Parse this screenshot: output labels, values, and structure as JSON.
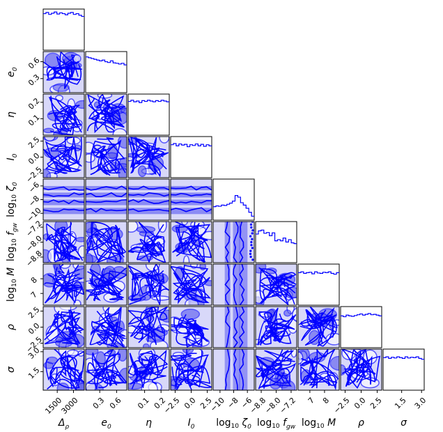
{
  "chart_data": {
    "type": "corner",
    "description_free": true,
    "color": "#0000ff",
    "params": [
      {
        "label": "Δ",
        "sub": "ρ",
        "prefix": "",
        "ticks": [
          "1500",
          "3000"
        ],
        "range": [
          200,
          4000
        ]
      },
      {
        "label": "e",
        "sub": "0",
        "prefix": "",
        "ticks": [
          "0.3",
          "0.6"
        ],
        "range": [
          0.05,
          0.78
        ]
      },
      {
        "label": "η",
        "sub": "",
        "prefix": "",
        "ticks": [
          "0.1",
          "0.2"
        ],
        "range": [
          0.0,
          0.25
        ]
      },
      {
        "label": "I",
        "sub": "0",
        "prefix": "",
        "ticks": [
          "−2.5",
          "0.0",
          "2.5"
        ],
        "range": [
          -3.2,
          3.2
        ]
      },
      {
        "label": "ζ",
        "sub": "0",
        "prefix": "log10",
        "ticks": [
          "−10",
          "−8",
          "−6"
        ],
        "range": [
          -11,
          -5
        ]
      },
      {
        "label": "f",
        "sub": "gw",
        "prefix": "log10",
        "ticks": [
          "−8.8",
          "−8.0",
          "−7.2"
        ],
        "range": [
          -9.1,
          -6.9
        ]
      },
      {
        "label": "M",
        "sub": "",
        "prefix": "log10",
        "ticks": [
          "7",
          "8"
        ],
        "range": [
          6.2,
          9.0
        ]
      },
      {
        "label": "ρ",
        "sub": "",
        "prefix": "",
        "ticks": [
          "−2.5",
          "0.0",
          "2.5"
        ],
        "range": [
          -3.2,
          3.2
        ]
      },
      {
        "label": "σ",
        "sub": "",
        "prefix": "",
        "ticks": [
          "1.5",
          "3.0"
        ],
        "range": [
          0.1,
          3.2
        ]
      }
    ],
    "histograms": [
      [
        0.92,
        0.95,
        0.9,
        0.93,
        0.96,
        0.91,
        0.94,
        0.92,
        0.89,
        0.93,
        0.95,
        0.9,
        0.92,
        0.88,
        0.85
      ],
      [
        0.9,
        0.88,
        0.86,
        0.84,
        0.82,
        0.8,
        0.82,
        0.78,
        0.76,
        0.8,
        0.75,
        0.74,
        0.72,
        0.74,
        0.7
      ],
      [
        0.85,
        0.88,
        0.84,
        0.86,
        0.82,
        0.87,
        0.85,
        0.88,
        0.86,
        0.84,
        0.87,
        0.85,
        0.88,
        0.86,
        0.84
      ],
      [
        0.83,
        0.86,
        0.8,
        0.85,
        0.82,
        0.84,
        0.78,
        0.83,
        0.81,
        0.85,
        0.8,
        0.84,
        0.79,
        0.83,
        0.8
      ],
      [
        0.34,
        0.36,
        0.35,
        0.38,
        0.37,
        0.4,
        0.43,
        0.48,
        0.62,
        0.58,
        0.44,
        0.38,
        0.3,
        0.2,
        0.1
      ],
      [
        0.72,
        0.8,
        0.82,
        0.74,
        0.76,
        0.68,
        0.75,
        0.55,
        0.58,
        0.55,
        0.62,
        0.52,
        0.58,
        0.5,
        0.48
      ],
      [
        0.82,
        0.84,
        0.8,
        0.82,
        0.83,
        0.79,
        0.84,
        0.81,
        0.8,
        0.83,
        0.82,
        0.84,
        0.8,
        0.78,
        0.82
      ],
      [
        0.8,
        0.78,
        0.82,
        0.8,
        0.79,
        0.81,
        0.83,
        0.85,
        0.82,
        0.84,
        0.86,
        0.83,
        0.84,
        0.82,
        0.8
      ],
      [
        0.82,
        0.84,
        0.8,
        0.83,
        0.81,
        0.84,
        0.82,
        0.8,
        0.84,
        0.81,
        0.83,
        0.82,
        0.84,
        0.8,
        0.78
      ]
    ]
  }
}
